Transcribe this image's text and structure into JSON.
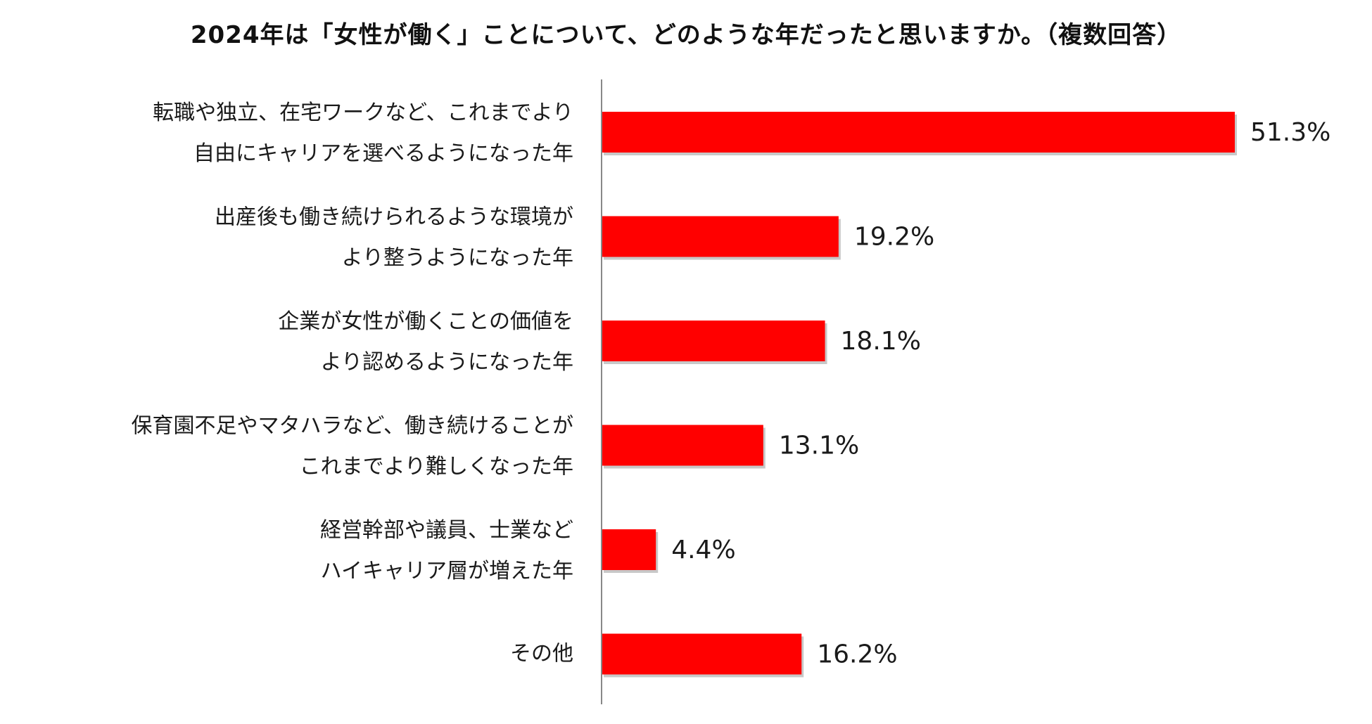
{
  "chart_data": {
    "type": "bar",
    "orientation": "horizontal",
    "title": "2024年は「女性が働く」ことについて、どのような年だったと思いますか。（複数回答）",
    "categories": [
      [
        "転職や独立、在宅ワークなど、これまでより",
        "自由にキャリアを選べるようになった年"
      ],
      [
        "出産後も働き続けられるような環境が",
        "より整うようになった年"
      ],
      [
        "企業が女性が働くことの価値を",
        "より認めるようになった年"
      ],
      [
        "保育園不足やマタハラなど、働き続けることが",
        "これまでより難しくなった年"
      ],
      [
        "経営幹部や議員、士業など",
        "ハイキャリア層が増えた年"
      ],
      [
        "その他"
      ]
    ],
    "values": [
      51.3,
      19.2,
      18.1,
      13.1,
      4.4,
      16.2
    ],
    "value_labels": [
      "51.3%",
      "19.2%",
      "18.1%",
      "13.1%",
      "4.4%",
      "16.2%"
    ],
    "unit": "%",
    "xlim": [
      0,
      60
    ],
    "bar_color": "#ff0000",
    "axis_color": "#888888",
    "grid": false,
    "legend": "none"
  }
}
